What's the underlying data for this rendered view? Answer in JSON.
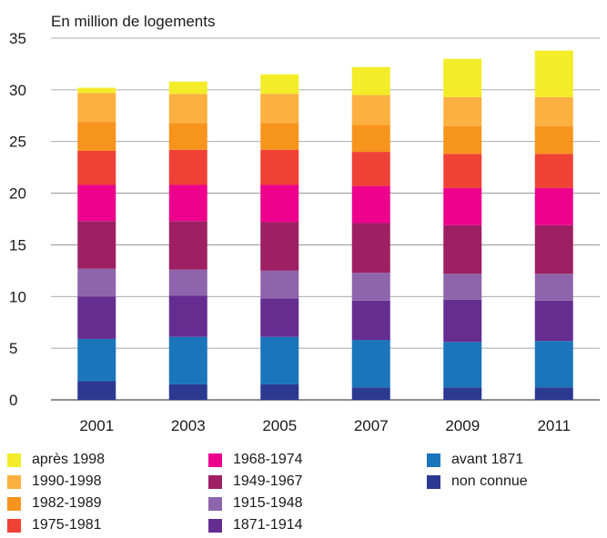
{
  "chart_data": {
    "type": "bar",
    "stacked": true,
    "unit_label": "En million de logements",
    "categories": [
      "2001",
      "2003",
      "2005",
      "2007",
      "2009",
      "2011"
    ],
    "ylim": [
      0,
      35
    ],
    "yticks": [
      "0",
      "5",
      "10",
      "15",
      "20",
      "25",
      "30",
      "35"
    ],
    "grid": "horizontal",
    "legend_position": "bottom",
    "series": [
      {
        "name": "non connue",
        "color": "#2b3990",
        "values": [
          1.8,
          1.5,
          1.5,
          1.2,
          1.2,
          1.2
        ]
      },
      {
        "name": "avant 1871",
        "color": "#1b75bb",
        "values": [
          4.1,
          4.6,
          4.6,
          4.6,
          4.4,
          4.5
        ]
      },
      {
        "name": "1871-1914",
        "color": "#662d91",
        "values": [
          4.1,
          4.0,
          3.7,
          3.8,
          4.1,
          3.9
        ]
      },
      {
        "name": "1915-1948",
        "color": "#8e65ac",
        "values": [
          2.7,
          2.5,
          2.7,
          2.7,
          2.5,
          2.6
        ]
      },
      {
        "name": "1949-1967",
        "color": "#9e1f63",
        "values": [
          4.6,
          4.7,
          4.7,
          4.8,
          4.7,
          4.7
        ]
      },
      {
        "name": "1968-1974",
        "color": "#ec008c",
        "values": [
          3.5,
          3.5,
          3.6,
          3.6,
          3.6,
          3.6
        ]
      },
      {
        "name": "1975-1981",
        "color": "#ef4136",
        "values": [
          3.3,
          3.4,
          3.4,
          3.3,
          3.3,
          3.3
        ]
      },
      {
        "name": "1982-1989",
        "color": "#f7941d",
        "values": [
          2.8,
          2.6,
          2.6,
          2.6,
          2.7,
          2.7
        ]
      },
      {
        "name": "1990-1998",
        "color": "#fbb040",
        "values": [
          2.8,
          2.8,
          2.8,
          2.9,
          2.8,
          2.8
        ]
      },
      {
        "name": "après 1998",
        "color": "#f3ec29",
        "values": [
          0.5,
          1.2,
          1.9,
          2.7,
          3.7,
          4.5
        ]
      }
    ],
    "legend_order": [
      "après 1998",
      "1990-1998",
      "1982-1989",
      "1975-1981",
      "1968-1974",
      "1949-1967",
      "1915-1948",
      "1871-1914",
      "avant 1871",
      "non connue"
    ]
  }
}
